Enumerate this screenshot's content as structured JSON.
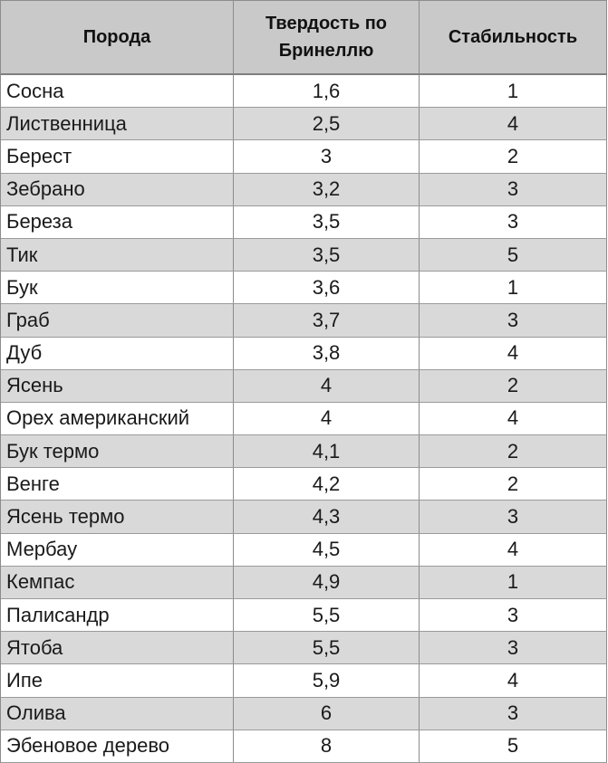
{
  "headers": {
    "breed": "Порода",
    "hardness": "Твердость по Бринеллю",
    "stability": "Стабильность"
  },
  "rows": [
    {
      "breed": "Сосна",
      "hardness": "1,6",
      "stability": "1"
    },
    {
      "breed": "Лиственница",
      "hardness": "2,5",
      "stability": "4"
    },
    {
      "breed": "Берест",
      "hardness": "3",
      "stability": "2"
    },
    {
      "breed": "Зебрано",
      "hardness": "3,2",
      "stability": "3"
    },
    {
      "breed": "Береза",
      "hardness": "3,5",
      "stability": "3"
    },
    {
      "breed": "Тик",
      "hardness": "3,5",
      "stability": "5"
    },
    {
      "breed": "Бук",
      "hardness": "3,6",
      "stability": "1"
    },
    {
      "breed": "Граб",
      "hardness": "3,7",
      "stability": "3"
    },
    {
      "breed": "Дуб",
      "hardness": "3,8",
      "stability": "4"
    },
    {
      "breed": "Ясень",
      "hardness": "4",
      "stability": "2"
    },
    {
      "breed": "Орех американский",
      "hardness": "4",
      "stability": "4"
    },
    {
      "breed": "Бук термо",
      "hardness": "4,1",
      "stability": "2"
    },
    {
      "breed": "Венге",
      "hardness": "4,2",
      "stability": "2"
    },
    {
      "breed": "Ясень термо",
      "hardness": "4,3",
      "stability": "3"
    },
    {
      "breed": "Мербау",
      "hardness": "4,5",
      "stability": "4"
    },
    {
      "breed": "Кемпас",
      "hardness": "4,9",
      "stability": "1"
    },
    {
      "breed": "Палисандр",
      "hardness": "5,5",
      "stability": "3"
    },
    {
      "breed": "Ятоба",
      "hardness": "5,5",
      "stability": "3"
    },
    {
      "breed": "Ипе",
      "hardness": "5,9",
      "stability": "4"
    },
    {
      "breed": "Олива",
      "hardness": "6",
      "stability": "3"
    },
    {
      "breed": "Эбеновое дерево",
      "hardness": "8",
      "stability": "5"
    }
  ]
}
